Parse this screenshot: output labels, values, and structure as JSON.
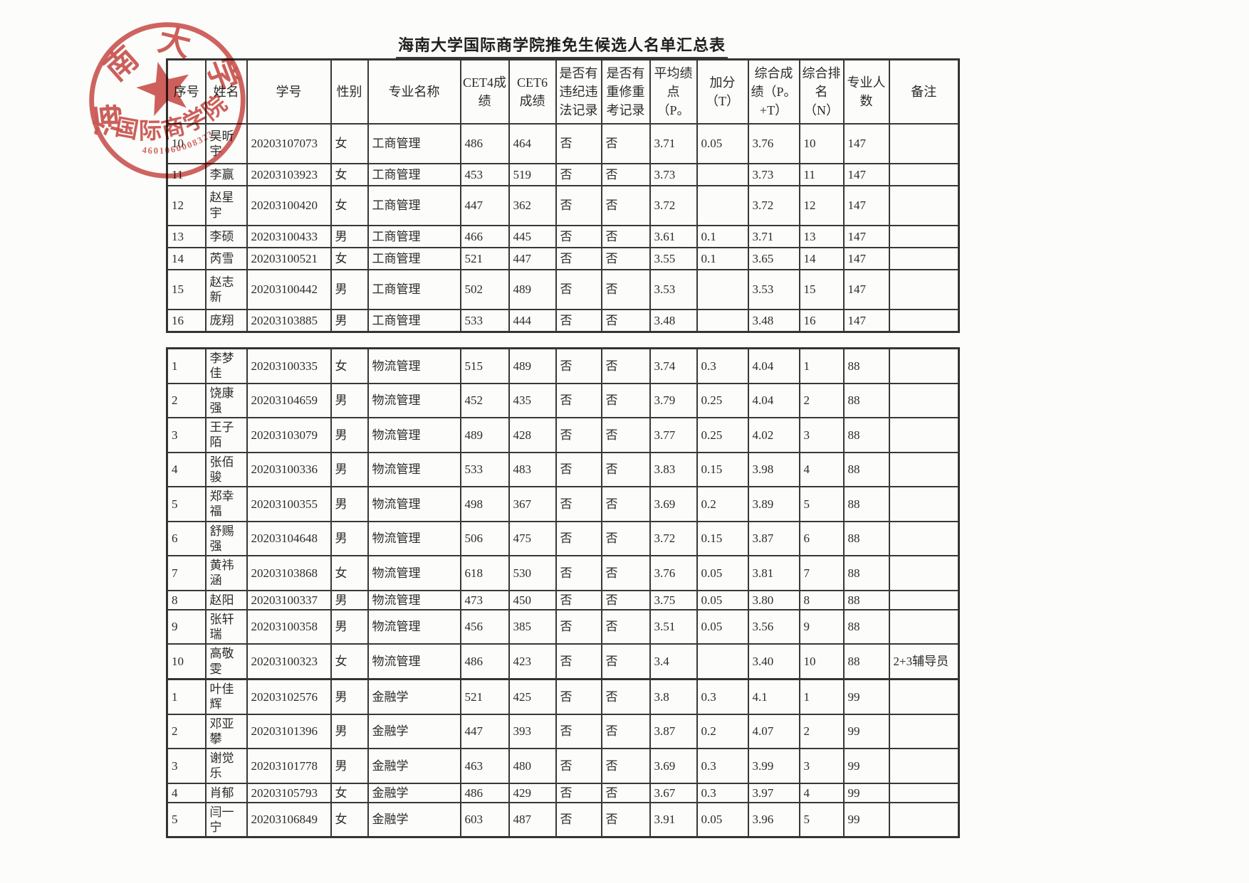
{
  "title": "海南大学国际商学院推免生候选人名单汇总表",
  "stamp": {
    "university": "海南大学",
    "college": "国际商学院",
    "serial": "4601060008323"
  },
  "columns": [
    "序号",
    "姓名",
    "学号",
    "性别",
    "专业名称",
    "CET4成绩",
    "CET6成绩",
    "是否有违纪违法记录",
    "是否有重修重考记录",
    "平均绩点（P。",
    "加分（T）",
    "综合成绩（P。+T）",
    "综合排名（N）",
    "专业人数",
    "备注"
  ],
  "tables": [
    {
      "major": "工商管理",
      "rows": [
        [
          "10",
          "昊昕宇",
          "20203107073",
          "女",
          "工商管理",
          "486",
          "464",
          "否",
          "否",
          "3.71",
          "0.05",
          "3.76",
          "10",
          "147",
          ""
        ],
        [
          "11",
          "李赢",
          "20203103923",
          "女",
          "工商管理",
          "453",
          "519",
          "否",
          "否",
          "3.73",
          "",
          "3.73",
          "11",
          "147",
          ""
        ],
        [
          "12",
          "赵星宇",
          "20203100420",
          "女",
          "工商管理",
          "447",
          "362",
          "否",
          "否",
          "3.72",
          "",
          "3.72",
          "12",
          "147",
          ""
        ],
        [
          "13",
          "李硕",
          "20203100433",
          "男",
          "工商管理",
          "466",
          "445",
          "否",
          "否",
          "3.61",
          "0.1",
          "3.71",
          "13",
          "147",
          ""
        ],
        [
          "14",
          "芮雪",
          "20203100521",
          "女",
          "工商管理",
          "521",
          "447",
          "否",
          "否",
          "3.55",
          "0.1",
          "3.65",
          "14",
          "147",
          ""
        ],
        [
          "15",
          "赵志新",
          "20203100442",
          "男",
          "工商管理",
          "502",
          "489",
          "否",
          "否",
          "3.53",
          "",
          "3.53",
          "15",
          "147",
          ""
        ],
        [
          "16",
          "庞翔",
          "20203103885",
          "男",
          "工商管理",
          "533",
          "444",
          "否",
          "否",
          "3.48",
          "",
          "3.48",
          "16",
          "147",
          ""
        ]
      ]
    },
    {
      "major": "物流管理",
      "rows": [
        [
          "1",
          "李梦佳",
          "20203100335",
          "女",
          "物流管理",
          "515",
          "489",
          "否",
          "否",
          "3.74",
          "0.3",
          "4.04",
          "1",
          "88",
          ""
        ],
        [
          "2",
          "饶康强",
          "20203104659",
          "男",
          "物流管理",
          "452",
          "435",
          "否",
          "否",
          "3.79",
          "0.25",
          "4.04",
          "2",
          "88",
          ""
        ],
        [
          "3",
          "王子陌",
          "20203103079",
          "男",
          "物流管理",
          "489",
          "428",
          "否",
          "否",
          "3.77",
          "0.25",
          "4.02",
          "3",
          "88",
          ""
        ],
        [
          "4",
          "张佰骏",
          "20203100336",
          "男",
          "物流管理",
          "533",
          "483",
          "否",
          "否",
          "3.83",
          "0.15",
          "3.98",
          "4",
          "88",
          ""
        ],
        [
          "5",
          "郑幸福",
          "20203100355",
          "男",
          "物流管理",
          "498",
          "367",
          "否",
          "否",
          "3.69",
          "0.2",
          "3.89",
          "5",
          "88",
          ""
        ],
        [
          "6",
          "舒赐强",
          "20203104648",
          "男",
          "物流管理",
          "506",
          "475",
          "否",
          "否",
          "3.72",
          "0.15",
          "3.87",
          "6",
          "88",
          ""
        ],
        [
          "7",
          "黄祎涵",
          "20203103868",
          "女",
          "物流管理",
          "618",
          "530",
          "否",
          "否",
          "3.76",
          "0.05",
          "3.81",
          "7",
          "88",
          ""
        ],
        [
          "8",
          "赵阳",
          "20203100337",
          "男",
          "物流管理",
          "473",
          "450",
          "否",
          "否",
          "3.75",
          "0.05",
          "3.80",
          "8",
          "88",
          ""
        ],
        [
          "9",
          "张轩瑞",
          "20203100358",
          "男",
          "物流管理",
          "456",
          "385",
          "否",
          "否",
          "3.51",
          "0.05",
          "3.56",
          "9",
          "88",
          ""
        ],
        [
          "10",
          "高敬雯",
          "20203100323",
          "女",
          "物流管理",
          "486",
          "423",
          "否",
          "否",
          "3.4",
          "",
          "3.40",
          "10",
          "88",
          "2+3辅导员"
        ]
      ]
    },
    {
      "major": "金融学",
      "rows": [
        [
          "1",
          "叶佳辉",
          "20203102576",
          "男",
          "金融学",
          "521",
          "425",
          "否",
          "否",
          "3.8",
          "0.3",
          "4.1",
          "1",
          "99",
          ""
        ],
        [
          "2",
          "邓亚攀",
          "20203101396",
          "男",
          "金融学",
          "447",
          "393",
          "否",
          "否",
          "3.87",
          "0.2",
          "4.07",
          "2",
          "99",
          ""
        ],
        [
          "3",
          "谢觉乐",
          "20203101778",
          "男",
          "金融学",
          "463",
          "480",
          "否",
          "否",
          "3.69",
          "0.3",
          "3.99",
          "3",
          "99",
          ""
        ],
        [
          "4",
          "肖郁",
          "20203105793",
          "女",
          "金融学",
          "486",
          "429",
          "否",
          "否",
          "3.67",
          "0.3",
          "3.97",
          "4",
          "99",
          ""
        ],
        [
          "5",
          "闫一宁",
          "20203106849",
          "女",
          "金融学",
          "603",
          "487",
          "否",
          "否",
          "3.91",
          "0.05",
          "3.96",
          "5",
          "99",
          ""
        ]
      ]
    }
  ]
}
